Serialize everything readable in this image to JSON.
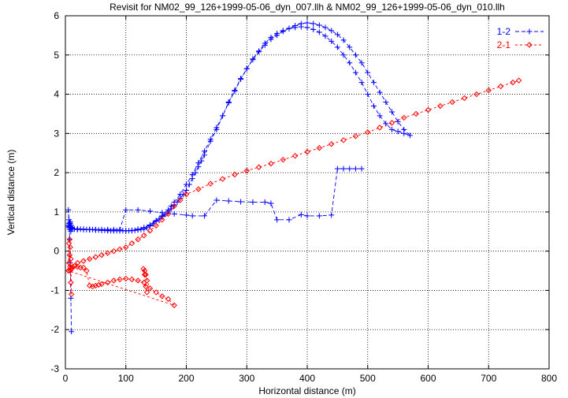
{
  "chart_data": {
    "type": "line",
    "title": "Revisit for NM02_99_126+1999-05-06_dyn_007.llh & NM02_99_126+1999-05-06_dyn_010.llh",
    "xlabel": "Horizontal distance (m)",
    "ylabel": "Vertical distance (m)",
    "xlim": [
      0,
      800
    ],
    "ylim": [
      -3,
      6
    ],
    "xticks": [
      0,
      100,
      200,
      300,
      400,
      500,
      600,
      700,
      800
    ],
    "yticks": [
      -3,
      -2,
      -1,
      0,
      1,
      2,
      3,
      4,
      5,
      6
    ],
    "grid": true,
    "legend_position": "top-right",
    "series": [
      {
        "name": "1-2",
        "color": "#0000ff",
        "marker": "plus",
        "dash": "5,3",
        "x": [
          10,
          9,
          8,
          7,
          6,
          5,
          6,
          8,
          7,
          6,
          8,
          10,
          9,
          8,
          8,
          9,
          10,
          12,
          15,
          20,
          25,
          30,
          35,
          40,
          45,
          50,
          55,
          60,
          65,
          70,
          75,
          80,
          85,
          90,
          95,
          100,
          105,
          110,
          115,
          120,
          125,
          130,
          135,
          140,
          145,
          150,
          155,
          160,
          165,
          170,
          175,
          180,
          185,
          190,
          195,
          200,
          205,
          210,
          215,
          220,
          225,
          230,
          240,
          250,
          260,
          270,
          280,
          290,
          300,
          310,
          320,
          330,
          340,
          350,
          360,
          370,
          380,
          390,
          400,
          410,
          420,
          430,
          440,
          450,
          460,
          470,
          480,
          490,
          500,
          510,
          520,
          530,
          540,
          550,
          560,
          570,
          560,
          550,
          540,
          530,
          520,
          510,
          500,
          490,
          480,
          470,
          460,
          450,
          440,
          430,
          420,
          410,
          400,
          390,
          380,
          370,
          360,
          350,
          340,
          330,
          320,
          310,
          300,
          290,
          280,
          270,
          260,
          250,
          240,
          230,
          220,
          210,
          200,
          190,
          180,
          175,
          170,
          160,
          150,
          140,
          130,
          120,
          110,
          100,
          90,
          80,
          70,
          60,
          50,
          40,
          30,
          20,
          10,
          8,
          6,
          5,
          6,
          7,
          8,
          10,
          10,
          20,
          30,
          40,
          50,
          60,
          70,
          80,
          90,
          100,
          120,
          140,
          160,
          180,
          200,
          210,
          230,
          250,
          270,
          290,
          310,
          330,
          340,
          350,
          370,
          390,
          400,
          420,
          440,
          450,
          460,
          470,
          480,
          490
        ],
        "y": [
          -2.05,
          -1.2,
          -0.3,
          0.3,
          0.8,
          1.05,
          0.6,
          0.7,
          0.55,
          0.65,
          0.75,
          0.6,
          0.5,
          0.6,
          0.62,
          0.6,
          0.58,
          0.57,
          0.56,
          0.56,
          0.56,
          0.55,
          0.55,
          0.55,
          0.55,
          0.54,
          0.54,
          0.53,
          0.53,
          0.53,
          0.52,
          0.52,
          0.52,
          0.52,
          0.52,
          0.52,
          0.52,
          0.52,
          0.53,
          0.54,
          0.55,
          0.56,
          0.6,
          0.64,
          0.7,
          0.76,
          0.82,
          0.88,
          0.94,
          1.0,
          1.08,
          1.16,
          1.25,
          1.35,
          1.45,
          1.55,
          1.7,
          1.85,
          2.0,
          2.15,
          2.3,
          2.45,
          2.8,
          3.1,
          3.45,
          3.8,
          4.1,
          4.4,
          4.65,
          4.9,
          5.1,
          5.3,
          5.45,
          5.55,
          5.62,
          5.67,
          5.7,
          5.72,
          5.7,
          5.65,
          5.58,
          5.48,
          5.35,
          5.2,
          5.0,
          4.8,
          4.55,
          4.3,
          4.0,
          3.7,
          3.45,
          3.25,
          3.1,
          3.05,
          3.0,
          2.95,
          3.1,
          3.3,
          3.55,
          3.8,
          4.05,
          4.3,
          4.55,
          4.8,
          5.0,
          5.2,
          5.38,
          5.52,
          5.62,
          5.7,
          5.76,
          5.8,
          5.82,
          5.8,
          5.75,
          5.68,
          5.6,
          5.5,
          5.4,
          5.25,
          5.08,
          4.88,
          4.65,
          4.38,
          4.08,
          3.78,
          3.45,
          3.15,
          2.85,
          2.55,
          2.25,
          1.95,
          1.7,
          1.45,
          1.25,
          1.15,
          1.05,
          0.9,
          0.78,
          0.67,
          0.6,
          0.56,
          0.53,
          0.52,
          0.52,
          0.52,
          0.52,
          0.53,
          0.54,
          0.55,
          0.56,
          0.57,
          0.58,
          0.6,
          0.62,
          0.65,
          0.7,
          0.72,
          0.7,
          0.65,
          0.6,
          0.55,
          0.55,
          0.55,
          0.55,
          0.55,
          0.55,
          0.55,
          0.55,
          1.05,
          1.05,
          1.02,
          0.98,
          0.95,
          0.92,
          0.9,
          0.9,
          1.3,
          1.28,
          1.26,
          1.25,
          1.25,
          1.22,
          0.8,
          0.8,
          0.93,
          0.9,
          0.9,
          0.92,
          2.1,
          2.1,
          2.1,
          2.1,
          2.1
        ]
      },
      {
        "name": "2-1",
        "color": "#ff0000",
        "marker": "diamond",
        "dash": "3,3",
        "x": [
          5,
          6,
          7,
          8,
          9,
          10,
          9,
          8,
          7,
          6,
          8,
          10,
          12,
          15,
          20,
          25,
          30,
          35,
          40,
          45,
          50,
          55,
          60,
          70,
          80,
          90,
          100,
          110,
          120,
          130,
          135,
          133,
          131,
          129,
          131,
          133,
          135,
          140,
          150,
          160,
          170,
          180,
          5,
          10,
          20,
          30,
          40,
          50,
          60,
          70,
          80,
          90,
          100,
          110,
          120,
          130,
          140,
          150,
          160,
          170,
          180,
          190,
          200,
          220,
          240,
          260,
          280,
          300,
          320,
          340,
          360,
          380,
          400,
          420,
          440,
          460,
          480,
          500,
          520,
          540,
          560,
          580,
          600,
          620,
          640,
          660,
          680,
          700,
          720,
          740,
          750
        ],
        "y": [
          -0.5,
          0.2,
          0.3,
          -0.4,
          -0.8,
          -1.1,
          -0.2,
          0.1,
          -0.1,
          -0.3,
          -0.5,
          -0.45,
          -0.4,
          -0.38,
          -0.4,
          -0.42,
          -0.42,
          -0.5,
          -0.88,
          -0.9,
          -0.88,
          -0.86,
          -0.84,
          -0.8,
          -0.75,
          -0.72,
          -0.7,
          -0.72,
          -0.75,
          -0.8,
          -1.05,
          -0.9,
          -0.6,
          -0.45,
          -0.5,
          -0.6,
          -0.75,
          -0.95,
          -1.05,
          -1.15,
          -1.22,
          -1.38,
          -0.5,
          -0.45,
          -0.3,
          -0.25,
          -0.2,
          -0.15,
          -0.1,
          -0.05,
          0.0,
          0.05,
          0.1,
          0.2,
          0.3,
          0.4,
          0.52,
          0.65,
          0.8,
          0.95,
          1.15,
          1.3,
          1.45,
          1.58,
          1.72,
          1.84,
          1.95,
          2.05,
          2.14,
          2.23,
          2.33,
          2.43,
          2.53,
          2.63,
          2.73,
          2.83,
          2.93,
          3.03,
          3.15,
          3.27,
          3.4,
          3.5,
          3.6,
          3.7,
          3.8,
          3.9,
          4.0,
          4.1,
          4.2,
          4.3,
          4.35
        ]
      }
    ]
  }
}
